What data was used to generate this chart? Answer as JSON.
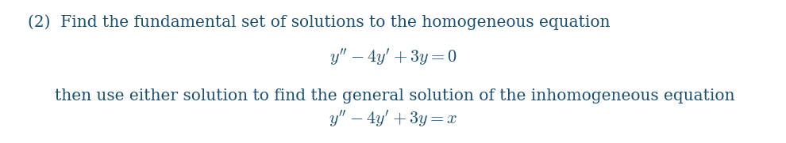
{
  "background_color": "#ffffff",
  "text_color": "#1a4f72",
  "line1_text": "(2)  Find the fundamental set of solutions to the homogeneous equation",
  "line1_fontsize": 14.5,
  "eq1_latex": "$y'' - 4y' + 3y = 0$",
  "eq1_fontsize": 16,
  "line2_text": "then use either solution to find the general solution of the inhomogeneous equation",
  "line2_fontsize": 14.5,
  "line2_indent": 0.07,
  "eq2_latex": "$y'' - 4y' + 3y = x$",
  "eq2_fontsize": 16,
  "fig_width": 9.9,
  "fig_height": 1.81,
  "dpi": 100
}
